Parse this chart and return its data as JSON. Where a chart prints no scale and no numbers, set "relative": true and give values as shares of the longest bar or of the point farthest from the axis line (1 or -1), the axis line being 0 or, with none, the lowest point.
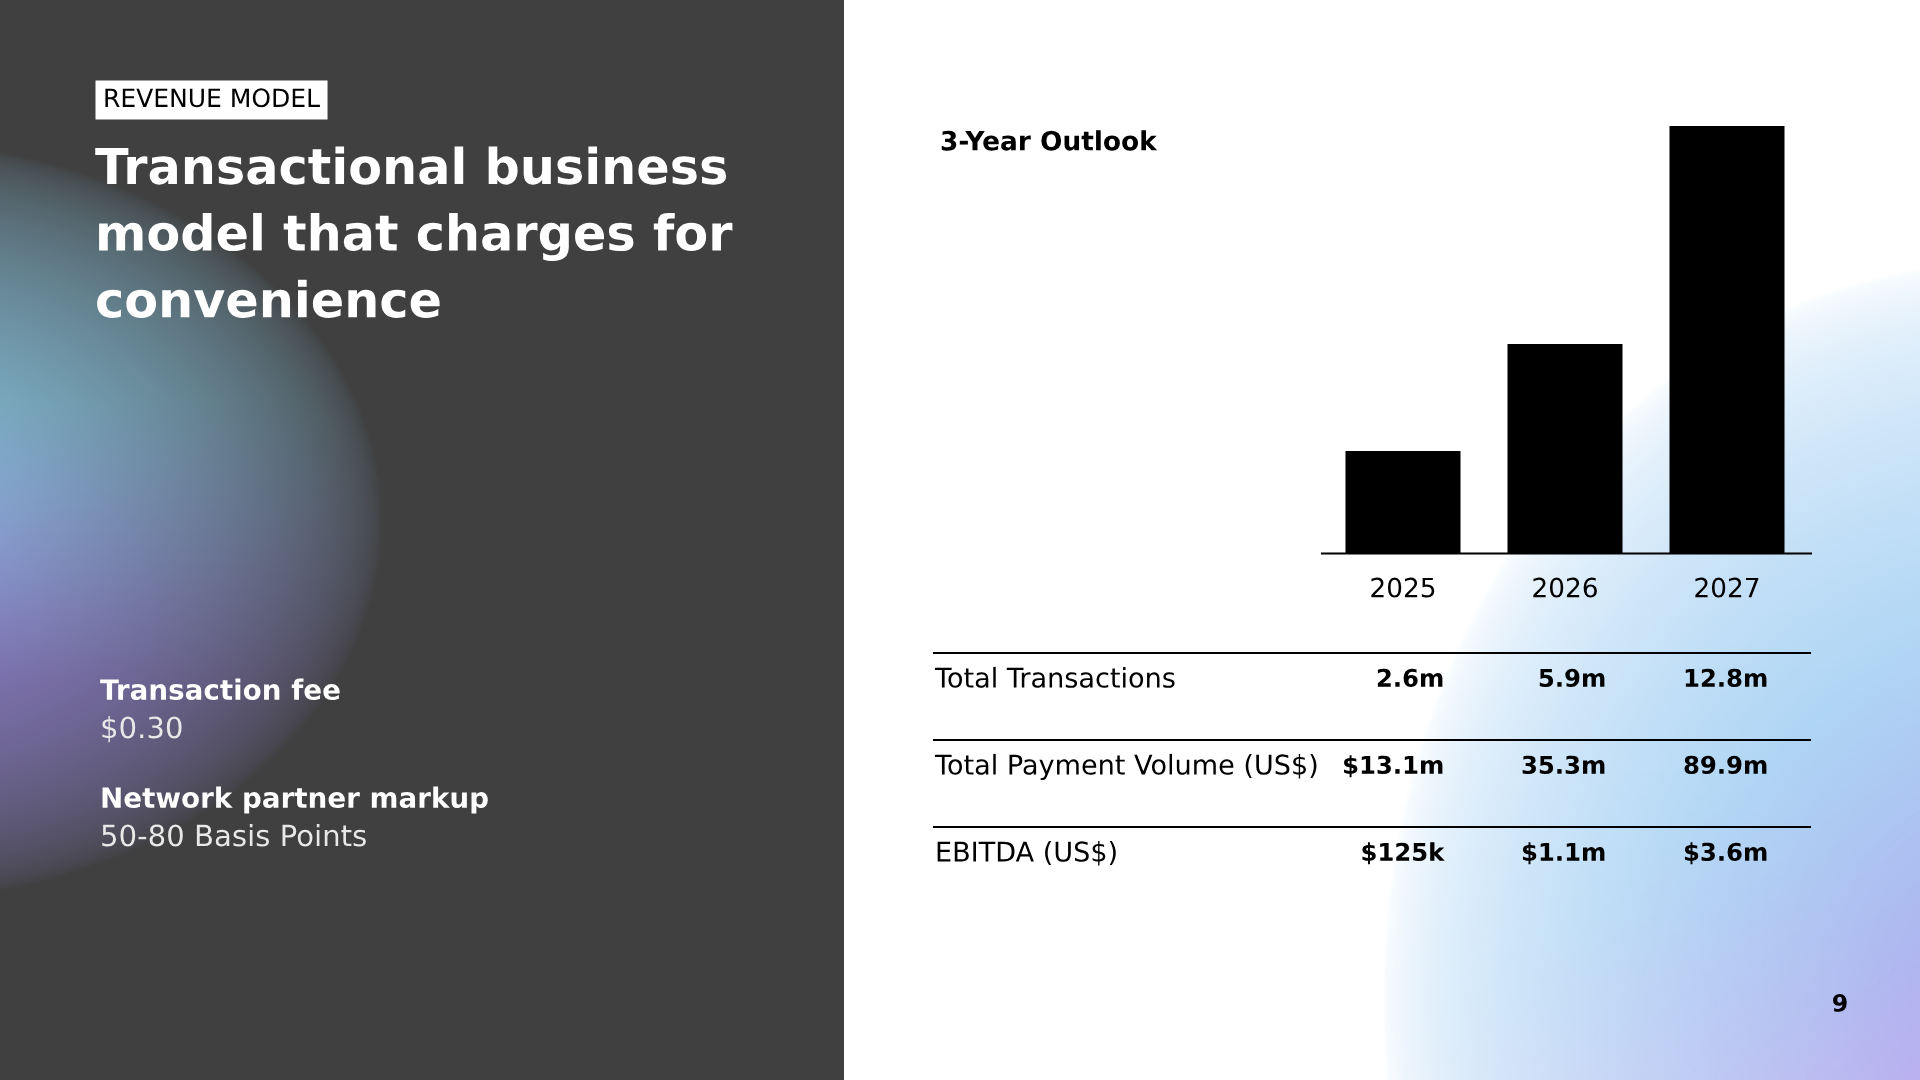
{
  "chart_data": {
    "type": "bar",
    "title": "3-Year Outlook",
    "categories": [
      "2025",
      "2026",
      "2027"
    ],
    "values": [
      0.24,
      0.49,
      1
    ],
    "color": "#000000",
    "relative": true,
    "annotations": [
      "REVENUE MODEL",
      "Transactional business model that charges for convenience",
      "Transaction fee",
      "$0.30",
      "Network partner markup",
      "50-80 Basis Points",
      "Total Transactions",
      "2.6m",
      "5.9m",
      "12.8m",
      "Total Payment Volume (US$)",
      "$13.1m",
      "35.3m",
      "89.9m",
      "EBITDA (US$)",
      "$125k",
      "$1.1m",
      "$3.6m",
      "9"
    ]
  }
}
